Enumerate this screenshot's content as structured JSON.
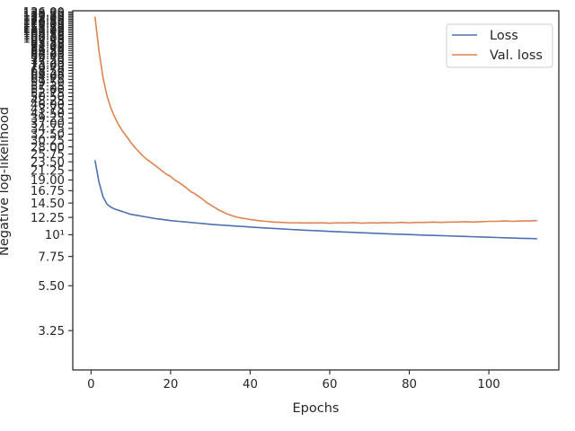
{
  "chart_data": {
    "type": "line",
    "title": "",
    "xlabel": "Epochs",
    "ylabel": "Negative log-likelihood",
    "y_scale": "log",
    "xlim": [
      -4.6,
      117.6
    ],
    "ylim": [
      2.05,
      138
    ],
    "grid": false,
    "legend_position": "top-right",
    "x_ticks": [
      0,
      20,
      40,
      60,
      80,
      100
    ],
    "y_ticks": [
      3.25,
      5.5,
      7.75,
      10,
      12.25,
      14.5,
      16.75,
      19,
      21.25,
      23.5,
      25.75,
      28,
      30.25,
      32.5,
      34.75,
      37,
      39.25,
      41.5,
      43.75,
      46,
      48.25,
      50.5,
      52.75,
      55,
      57.25,
      59.5,
      61.75,
      64,
      66.25,
      68.5,
      70.75,
      73,
      75.25,
      77.5,
      79.75,
      82,
      84.25,
      86.5,
      88.75,
      91,
      93.25,
      95.5,
      97.75,
      100,
      102.25,
      104.5,
      106.75,
      109,
      111.25,
      113.5,
      115.75,
      118,
      120.25,
      122.5,
      124.75,
      127,
      129.25,
      131.5,
      133.75,
      136
    ],
    "y_tick_labels": [
      "3.25",
      "5.50",
      "7.75",
      "10¹",
      "12.25",
      "14.50",
      "16.75",
      "19.00",
      "21.25",
      "23.50",
      "25.75",
      "28.00",
      "30.25",
      "32.50",
      "34.75",
      "37.00",
      "39.25",
      "41.50",
      "43.75",
      "46.00",
      "48.25",
      "50.50",
      "52.75",
      "55.00",
      "57.25",
      "59.50",
      "61.75",
      "64.00",
      "66.25",
      "68.50",
      "70.75",
      "73.00",
      "75.25",
      "77.50",
      "79.75",
      "82.00",
      "84.25",
      "86.50",
      "88.75",
      "91.00",
      "93.25",
      "95.50",
      "97.75",
      "100.00",
      "102.25",
      "104.50",
      "106.75",
      "109.00",
      "111.25",
      "113.50",
      "115.75",
      "118.00",
      "120.25",
      "122.50",
      "124.75",
      "127.00",
      "129.25",
      "131.50",
      "133.75",
      "136.00"
    ],
    "series": [
      {
        "name": "Loss",
        "color": "#4c72b0",
        "x": [
          1,
          2,
          3,
          4,
          5,
          6,
          7,
          8,
          9,
          10,
          12,
          14,
          16,
          18,
          20,
          22,
          24,
          26,
          28,
          30,
          32,
          34,
          36,
          38,
          40,
          42,
          44,
          46,
          48,
          50,
          52,
          54,
          56,
          58,
          60,
          62,
          64,
          66,
          68,
          70,
          72,
          74,
          76,
          78,
          80,
          82,
          84,
          86,
          88,
          90,
          92,
          94,
          96,
          98,
          100,
          102,
          104,
          106,
          108,
          110,
          112
        ],
        "y": [
          23.8,
          18.5,
          15.6,
          14.3,
          13.8,
          13.5,
          13.3,
          13.1,
          12.9,
          12.7,
          12.5,
          12.3,
          12.1,
          11.95,
          11.8,
          11.7,
          11.6,
          11.5,
          11.4,
          11.3,
          11.22,
          11.15,
          11.08,
          11.02,
          10.95,
          10.88,
          10.82,
          10.76,
          10.7,
          10.64,
          10.59,
          10.54,
          10.5,
          10.45,
          10.4,
          10.36,
          10.32,
          10.28,
          10.24,
          10.2,
          10.16,
          10.12,
          10.08,
          10.05,
          10.02,
          9.98,
          9.95,
          9.92,
          9.89,
          9.86,
          9.83,
          9.8,
          9.77,
          9.74,
          9.71,
          9.68,
          9.65,
          9.62,
          9.59,
          9.57,
          9.55
        ]
      },
      {
        "name": "Val. loss",
        "color": "#dd8452",
        "x": [
          1,
          2,
          3,
          4,
          5,
          6,
          7,
          8,
          9,
          10,
          11,
          12,
          13,
          14,
          15,
          16,
          17,
          18,
          19,
          20,
          21,
          22,
          23,
          24,
          25,
          26,
          27,
          28,
          29,
          30,
          31,
          32,
          33,
          34,
          35,
          36,
          37,
          38,
          39,
          40,
          42,
          44,
          46,
          48,
          50,
          52,
          54,
          56,
          58,
          60,
          62,
          64,
          66,
          68,
          70,
          72,
          74,
          76,
          78,
          80,
          82,
          84,
          86,
          88,
          90,
          92,
          94,
          96,
          98,
          100,
          102,
          104,
          106,
          108,
          110,
          112
        ],
        "y": [
          128,
          86,
          63,
          51,
          44,
          39.5,
          36,
          33.5,
          31.5,
          29.5,
          27.8,
          26.5,
          25.2,
          24.2,
          23.4,
          22.6,
          21.8,
          21.0,
          20.3,
          19.8,
          19.0,
          18.5,
          17.9,
          17.3,
          16.6,
          16.2,
          15.7,
          15.2,
          14.6,
          14.2,
          13.8,
          13.4,
          13.1,
          12.8,
          12.6,
          12.4,
          12.25,
          12.15,
          12.05,
          11.95,
          11.8,
          11.7,
          11.6,
          11.55,
          11.5,
          11.5,
          11.48,
          11.48,
          11.5,
          11.45,
          11.5,
          11.48,
          11.52,
          11.45,
          11.5,
          11.48,
          11.52,
          11.5,
          11.55,
          11.5,
          11.55,
          11.55,
          11.6,
          11.55,
          11.6,
          11.6,
          11.65,
          11.6,
          11.65,
          11.7,
          11.7,
          11.75,
          11.7,
          11.75,
          11.75,
          11.8
        ]
      }
    ]
  }
}
